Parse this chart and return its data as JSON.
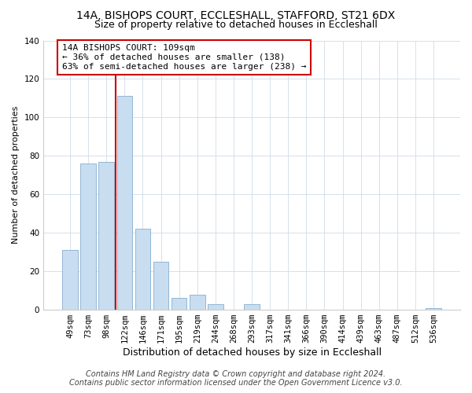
{
  "title": "14A, BISHOPS COURT, ECCLESHALL, STAFFORD, ST21 6DX",
  "subtitle": "Size of property relative to detached houses in Eccleshall",
  "xlabel": "Distribution of detached houses by size in Eccleshall",
  "ylabel": "Number of detached properties",
  "bin_labels": [
    "49sqm",
    "73sqm",
    "98sqm",
    "122sqm",
    "146sqm",
    "171sqm",
    "195sqm",
    "219sqm",
    "244sqm",
    "268sqm",
    "293sqm",
    "317sqm",
    "341sqm",
    "366sqm",
    "390sqm",
    "414sqm",
    "439sqm",
    "463sqm",
    "487sqm",
    "512sqm",
    "536sqm"
  ],
  "bar_values": [
    31,
    76,
    77,
    111,
    42,
    25,
    6,
    8,
    3,
    0,
    3,
    0,
    0,
    0,
    0,
    0,
    0,
    0,
    0,
    0,
    1
  ],
  "bar_color": "#c8ddf0",
  "bar_edge_color": "#85aecf",
  "vline_color": "#cc0000",
  "vline_pos": 2.5,
  "annotation_title": "14A BISHOPS COURT: 109sqm",
  "annotation_line1": "← 36% of detached houses are smaller (138)",
  "annotation_line2": "63% of semi-detached houses are larger (238) →",
  "annotation_box_color": "#ffffff",
  "annotation_box_edge": "#cc0000",
  "footer_line1": "Contains HM Land Registry data © Crown copyright and database right 2024.",
  "footer_line2": "Contains public sector information licensed under the Open Government Licence v3.0.",
  "ylim": [
    0,
    140
  ],
  "yticks": [
    0,
    20,
    40,
    60,
    80,
    100,
    120,
    140
  ],
  "title_fontsize": 10,
  "subtitle_fontsize": 9,
  "xlabel_fontsize": 9,
  "ylabel_fontsize": 8,
  "tick_fontsize": 7.5,
  "annotation_fontsize": 8,
  "footer_fontsize": 7,
  "background_color": "#ffffff",
  "grid_color": "#d0dce8"
}
